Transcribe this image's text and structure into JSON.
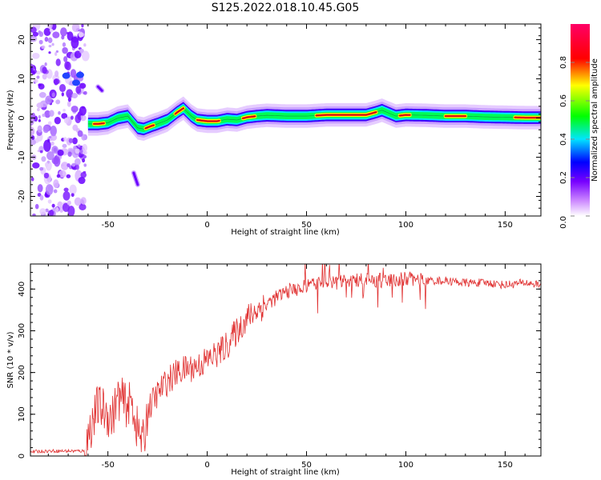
{
  "figure": {
    "title": "S125.2022.018.10.45.G05"
  },
  "chart_data": [
    {
      "type": "heatmap",
      "title": "",
      "xlabel": "Height of straight line (km)",
      "ylabel": "Frequency (Hz)",
      "xlim": [
        -89,
        168
      ],
      "ylim": [
        -25,
        24
      ],
      "xticks": [
        -50,
        0,
        50,
        100,
        150
      ],
      "yticks": [
        -20,
        -10,
        0,
        10,
        20
      ],
      "grid": false,
      "colorbar": {
        "label": "Normalized spectral amplitude",
        "range": [
          0,
          1
        ],
        "ticks": [
          "0.0",
          "0.2",
          "0.4",
          "0.6",
          "0.8"
        ],
        "colors": [
          "#ffffff",
          "#9933ff",
          "#2200ff",
          "#00e5ff",
          "#00ff00",
          "#ffff00",
          "#ff0000",
          "#ff0066"
        ]
      },
      "ridge": {
        "x": [
          -60,
          -55,
          -50,
          -45,
          -40,
          -35,
          -32,
          -28,
          -25,
          -20,
          -15,
          -12,
          -8,
          -5,
          0,
          5,
          10,
          15,
          20,
          25,
          30,
          40,
          50,
          60,
          70,
          80,
          85,
          88,
          95,
          100,
          110,
          120,
          130,
          140,
          150,
          160,
          168
        ],
        "y": [
          -1.5,
          -1.5,
          -1.2,
          0,
          0.5,
          -2.5,
          -2.8,
          -2,
          -1.5,
          -0.5,
          1.5,
          2.5,
          0.5,
          -0.5,
          -0.8,
          -0.8,
          -0.3,
          -0.5,
          0.2,
          0.5,
          0.7,
          0.5,
          0.5,
          0.8,
          0.8,
          0.8,
          1.5,
          2,
          0.5,
          0.8,
          0.7,
          0.5,
          0.5,
          0.3,
          0.2,
          0.1,
          0.1
        ]
      },
      "noise_region": {
        "x": [
          -89,
          -61
        ],
        "y": [
          -25,
          24
        ]
      },
      "side_streaks": [
        {
          "x": [
            -55,
            -53
          ],
          "y": [
            8,
            7
          ]
        },
        {
          "x": [
            -37,
            -35
          ],
          "y": [
            -14,
            -17
          ]
        }
      ]
    },
    {
      "type": "line",
      "title": "",
      "xlabel": "Height of straight line (km)",
      "ylabel": "SNR (10 * v/v)",
      "xlim": [
        -89,
        168
      ],
      "ylim": [
        0,
        460
      ],
      "xticks": [
        -50,
        0,
        50,
        100,
        150
      ],
      "yticks": [
        0,
        100,
        200,
        300,
        400
      ],
      "grid": false,
      "color": "#e03030",
      "series": [
        {
          "x": [
            -89,
            -80,
            -70,
            -62,
            -58,
            -55,
            -52,
            -48,
            -45,
            -42,
            -40,
            -38,
            -35,
            -32,
            -30,
            -25,
            -20,
            -15,
            -10,
            -5,
            0,
            5,
            10,
            15,
            20,
            25,
            30,
            35,
            40,
            45,
            50,
            55,
            60,
            65,
            70,
            80,
            90,
            100,
            110,
            120,
            130,
            140,
            150,
            160,
            168
          ],
          "values": [
            10,
            12,
            12,
            12,
            80,
            120,
            110,
            90,
            140,
            130,
            120,
            130,
            60,
            30,
            110,
            150,
            180,
            200,
            210,
            215,
            230,
            245,
            265,
            300,
            330,
            350,
            365,
            380,
            395,
            400,
            405,
            410,
            420,
            415,
            420,
            420,
            420,
            425,
            420,
            420,
            415,
            415,
            410,
            415,
            410
          ]
        }
      ]
    }
  ]
}
